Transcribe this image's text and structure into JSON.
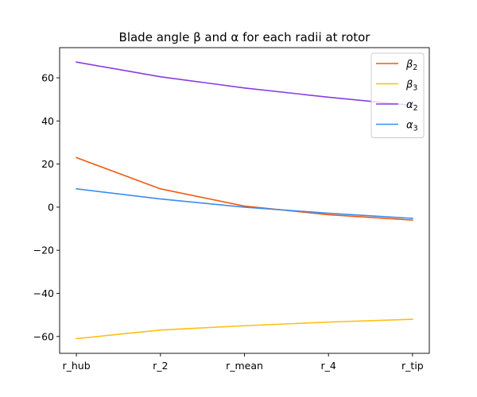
{
  "chart_data": {
    "type": "line",
    "title": "Blade angle β and α for each radii at rotor",
    "categories": [
      "r_hub",
      "r_2",
      "r_mean",
      "r_4",
      "r_tip"
    ],
    "ylim": [
      -67.8,
      74.0
    ],
    "yticks": [
      -60,
      -40,
      -20,
      0,
      20,
      40,
      60
    ],
    "grid": false,
    "legend_position": "top-right",
    "series": [
      {
        "name": "β2",
        "sym": "β",
        "sub": "2",
        "color": "#f05a10",
        "values": [
          23.0,
          8.5,
          0.5,
          -3.5,
          -6.0
        ]
      },
      {
        "name": "β3",
        "sym": "β",
        "sub": "3",
        "color": "#ffbe13",
        "values": [
          -61.0,
          -57.0,
          -55.0,
          -53.3,
          -52.0
        ]
      },
      {
        "name": "α2",
        "sym": "α",
        "sub": "2",
        "color": "#8a3be2",
        "values": [
          67.3,
          60.5,
          55.3,
          51.0,
          47.2
        ]
      },
      {
        "name": "α3",
        "sym": "α",
        "sub": "3",
        "color": "#3c8cf0",
        "values": [
          8.5,
          3.8,
          0.0,
          -2.8,
          -5.2
        ]
      }
    ]
  }
}
